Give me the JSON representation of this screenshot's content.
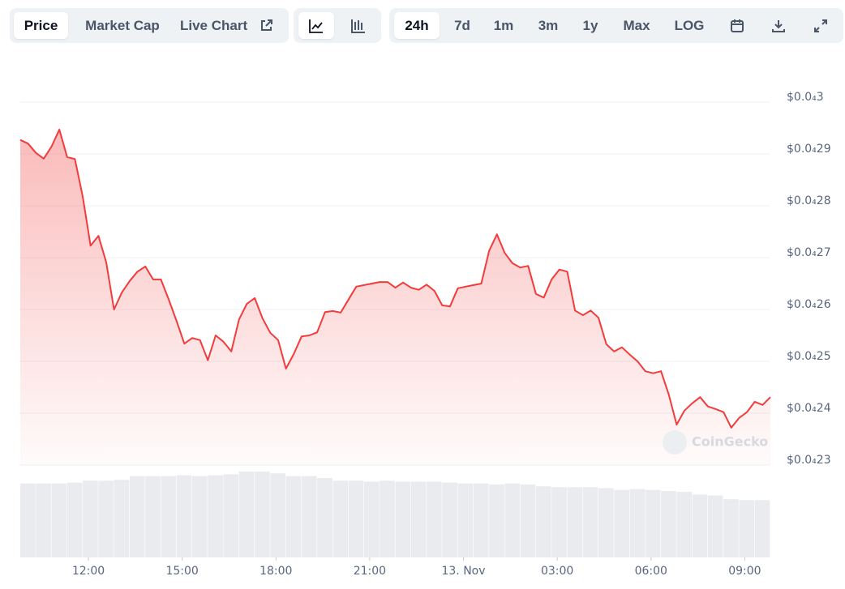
{
  "toolbar": {
    "tabs": [
      "Price",
      "Market Cap",
      "Live Chart"
    ],
    "ranges": [
      "24h",
      "7d",
      "1m",
      "3m",
      "1y",
      "Max",
      "LOG"
    ]
  },
  "chart_data": {
    "type": "area",
    "watermark": "CoinGecko",
    "series": [
      {
        "color": "#f23b3b",
        "x": [
          9.82,
          10.07,
          10.32,
          10.57,
          10.82,
          11.07,
          11.32,
          11.57,
          11.82,
          12.07,
          12.32,
          12.57,
          12.82,
          13.07,
          13.32,
          13.57,
          13.82,
          14.07,
          14.32,
          14.57,
          14.82,
          15.07,
          15.32,
          15.57,
          15.82,
          16.07,
          16.32,
          16.57,
          16.82,
          17.07,
          17.32,
          17.57,
          17.82,
          18.07,
          18.32,
          18.57,
          18.82,
          19.07,
          19.32,
          19.57,
          19.82,
          20.07,
          20.32,
          20.57,
          20.82,
          21.07,
          21.32,
          21.57,
          21.82,
          22.07,
          22.32,
          22.57,
          22.82,
          23.07,
          23.32,
          23.57,
          23.82,
          24.07,
          24.32,
          24.57,
          24.82,
          25.07,
          25.32,
          25.57,
          25.82,
          26.07,
          26.32,
          26.57,
          26.82,
          27.07,
          27.32,
          27.57,
          27.82,
          28.07,
          28.32,
          28.57,
          28.82,
          29.07,
          29.32,
          29.57,
          29.82,
          30.07,
          30.32,
          30.57,
          30.82,
          31.07,
          31.32,
          31.57,
          31.82,
          32.07,
          32.32,
          32.57,
          32.82,
          33.07,
          33.32,
          33.57,
          33.82
        ],
        "values": [
          2.927e-05,
          2.92e-05,
          2.902e-05,
          2.891e-05,
          2.914e-05,
          2.947e-05,
          2.894e-05,
          2.89e-05,
          2.817e-05,
          2.723e-05,
          2.742e-05,
          2.691e-05,
          2.6e-05,
          2.633e-05,
          2.655e-05,
          2.673e-05,
          2.683e-05,
          2.658e-05,
          2.658e-05,
          2.619e-05,
          2.578e-05,
          2.534e-05,
          2.545e-05,
          2.541e-05,
          2.502e-05,
          2.55e-05,
          2.538e-05,
          2.519e-05,
          2.581e-05,
          2.611e-05,
          2.622e-05,
          2.583e-05,
          2.555e-05,
          2.541e-05,
          2.486e-05,
          2.514e-05,
          2.548e-05,
          2.55e-05,
          2.556e-05,
          2.595e-05,
          2.597e-05,
          2.594e-05,
          2.619e-05,
          2.644e-05,
          2.647e-05,
          2.65e-05,
          2.653e-05,
          2.653e-05,
          2.642e-05,
          2.652e-05,
          2.642e-05,
          2.638e-05,
          2.648e-05,
          2.636e-05,
          2.608e-05,
          2.606e-05,
          2.641e-05,
          2.644e-05,
          2.647e-05,
          2.65e-05,
          2.713e-05,
          2.745e-05,
          2.709e-05,
          2.689e-05,
          2.681e-05,
          2.684e-05,
          2.63e-05,
          2.623e-05,
          2.658e-05,
          2.677e-05,
          2.673e-05,
          2.598e-05,
          2.589e-05,
          2.598e-05,
          2.584e-05,
          2.533e-05,
          2.519e-05,
          2.527e-05,
          2.513e-05,
          2.5e-05,
          2.481e-05,
          2.477e-05,
          2.481e-05,
          2.436e-05,
          2.378e-05,
          2.405e-05,
          2.419e-05,
          2.431e-05,
          2.413e-05,
          2.408e-05,
          2.402e-05,
          2.372e-05,
          2.391e-05,
          2.402e-05,
          2.422e-05,
          2.416e-05,
          2.431e-05
        ]
      }
    ],
    "volume": [
      80,
      80,
      80,
      81,
      83,
      83,
      84,
      88,
      88,
      88,
      89,
      88,
      89,
      90,
      93,
      93,
      91,
      88,
      88,
      86,
      83,
      83,
      82,
      83,
      82,
      82,
      82,
      81,
      80,
      80,
      79,
      80,
      79,
      77,
      76,
      76,
      76,
      75,
      73,
      74,
      73,
      72,
      71,
      68,
      67,
      63,
      62,
      62
    ],
    "volume_color": "#e9ebef",
    "xlim": [
      9.82,
      33.82
    ],
    "xticks": [
      {
        "value": 12,
        "label": "12:00"
      },
      {
        "value": 15,
        "label": "15:00"
      },
      {
        "value": 18,
        "label": "18:00"
      },
      {
        "value": 21,
        "label": "21:00"
      },
      {
        "value": 24,
        "label": "13. Nov"
      },
      {
        "value": 27,
        "label": "03:00"
      },
      {
        "value": 30,
        "label": "06:00"
      },
      {
        "value": 33,
        "label": "09:00"
      }
    ],
    "ylim": [
      2.3e-05,
      3.05e-05
    ],
    "yticks": [
      {
        "value": 3e-05,
        "label": "$0.0₄3"
      },
      {
        "value": 2.9e-05,
        "label": "$0.0₄29"
      },
      {
        "value": 2.8e-05,
        "label": "$0.0₄28"
      },
      {
        "value": 2.7e-05,
        "label": "$0.0₄27"
      },
      {
        "value": 2.6e-05,
        "label": "$0.0₄26"
      },
      {
        "value": 2.5e-05,
        "label": "$0.0₄25"
      },
      {
        "value": 2.4e-05,
        "label": "$0.0₄24"
      },
      {
        "value": 2.3e-05,
        "label": "$0.0₄23"
      }
    ],
    "grid": true
  }
}
